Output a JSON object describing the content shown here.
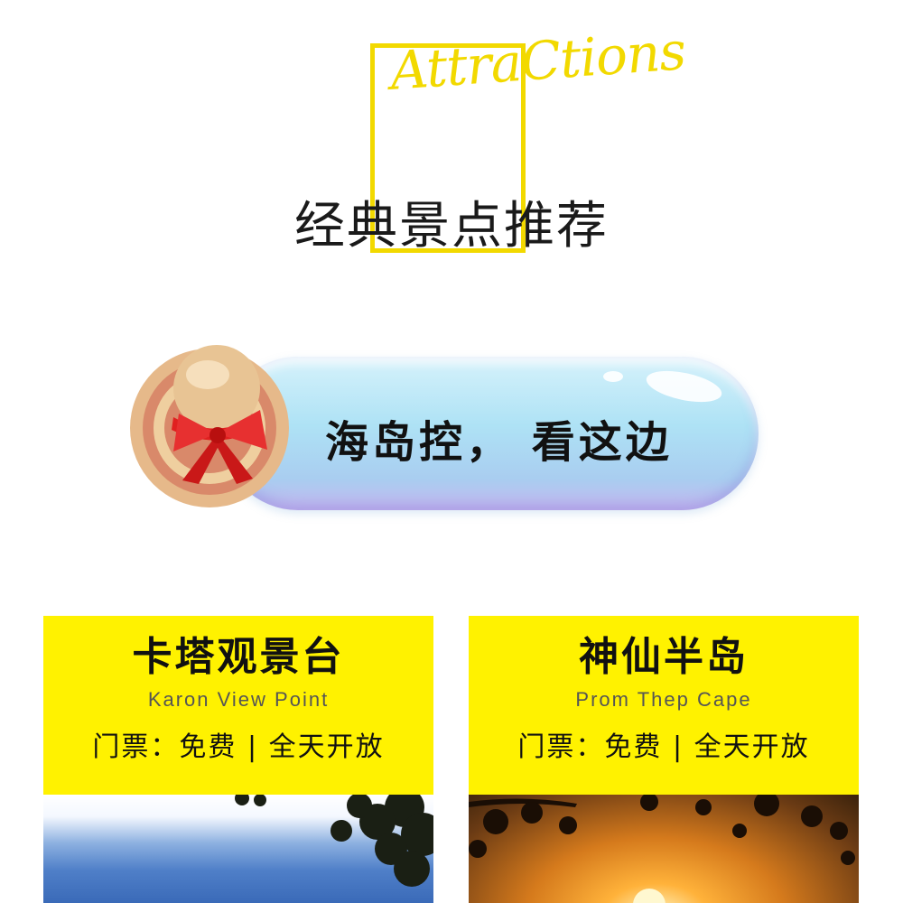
{
  "header": {
    "script_title": "AttraCtions",
    "main_title": "经典景点推荐"
  },
  "banner": {
    "text": "海岛控， 看这边"
  },
  "cards": [
    {
      "name": "卡塔观景台",
      "english": "Karon View Point",
      "info": "门票：免费 | 全天开放"
    },
    {
      "name": "神仙半岛",
      "english": "Prom Thep Cape",
      "info": "门票：免费 | 全天开放"
    }
  ],
  "colors": {
    "accent_yellow": "#fff200",
    "frame_yellow": "#f2d900",
    "pill_blue": "#aee2f5",
    "ribbon_red": "#e02020"
  },
  "icons": [
    "straw-hat-icon"
  ]
}
